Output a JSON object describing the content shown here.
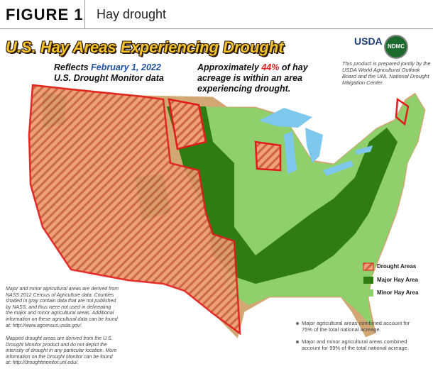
{
  "header": {
    "figure": "FIGURE 1",
    "title": "Hay drought"
  },
  "map": {
    "title": "U.S. Hay Areas Experiencing Drought",
    "reflects": {
      "prefix": "Reflects",
      "date": "February 1, 2022",
      "source": "U.S. Drought Monitor data"
    },
    "annotation": {
      "prefix": "Approximately",
      "share": "44%",
      "line1_rest": "of hay",
      "line2": "acreage is within an area",
      "line3": "experiencing drought."
    },
    "logos": {
      "usda": "USDA",
      "ndmc": "NDMC"
    },
    "credit": [
      "This product is prepared jointly by the",
      "USDA World Agricultural Outlook",
      "Board and the UNL National Drought",
      "Mitigation Center."
    ],
    "legend": [
      "Drought Areas",
      "Major Hay Area",
      "Minor Hay Area"
    ],
    "notes": [
      [
        "Major and minor agricultural areas are derived from",
        "NASS 2012 Census of Agriculture data.  Counties",
        "shaded in gray contain data that are not published",
        "by NASS, and thus were not used in delineating",
        "the major and minor agricultural areas.  Additional",
        "information on these agricultural data can be found",
        "at:  http://www.agcensus.usda.gov/."
      ],
      [
        "Mapped drought areas are derived from the U.S.",
        "Drought Monitor product and do not depict the",
        "intensity of drought in any particular location.  More",
        "information on the Drought Monitor can be found",
        "at:  http://droughtmonitor.unl.edu/."
      ]
    ],
    "bullets": [
      [
        "Major agricultural areas combined account for",
        "75% of the total national acreage."
      ],
      [
        "Major and minor agricultural areas combined",
        "account for 99% of the total national acreage."
      ]
    ]
  }
}
